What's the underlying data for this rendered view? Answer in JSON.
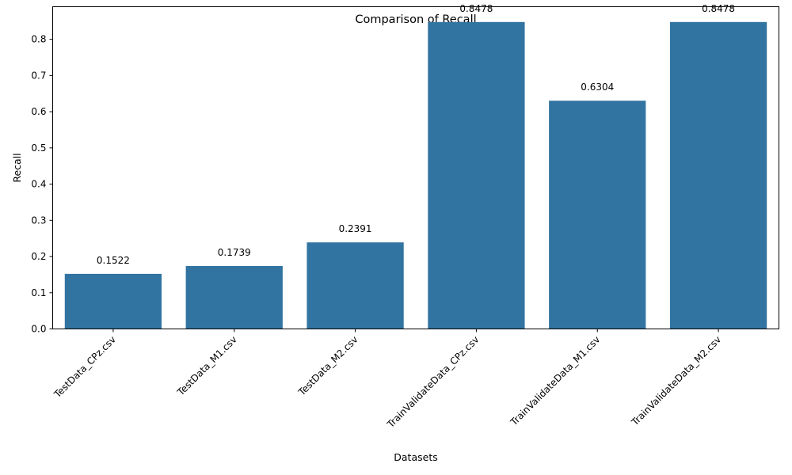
{
  "chart_data": {
    "type": "bar",
    "title": "Comparison of Recall",
    "xlabel": "Datasets",
    "ylabel": "Recall",
    "categories": [
      "TestData_CPz.csv",
      "TestData_M1.csv",
      "TestData_M2.csv",
      "TrainValidateData_CPz.csv",
      "TrainValidateData_M1.csv",
      "TrainValidateData_M2.csv"
    ],
    "values": [
      0.1522,
      0.1739,
      0.2391,
      0.8478,
      0.6304,
      0.8478
    ],
    "data_labels": [
      "0.1522",
      "0.1739",
      "0.2391",
      "0.8478",
      "0.6304",
      "0.8478"
    ],
    "ylim": [
      0,
      0.89
    ],
    "yticks": [
      0.0,
      0.1,
      0.2,
      0.3,
      0.4,
      0.5,
      0.6,
      0.7,
      0.8
    ],
    "ytick_labels": [
      "0.0",
      "0.1",
      "0.2",
      "0.3",
      "0.4",
      "0.5",
      "0.6",
      "0.7",
      "0.8"
    ],
    "grid": false,
    "colors": {
      "bar": "#3274a1",
      "axis": "#000000"
    }
  }
}
